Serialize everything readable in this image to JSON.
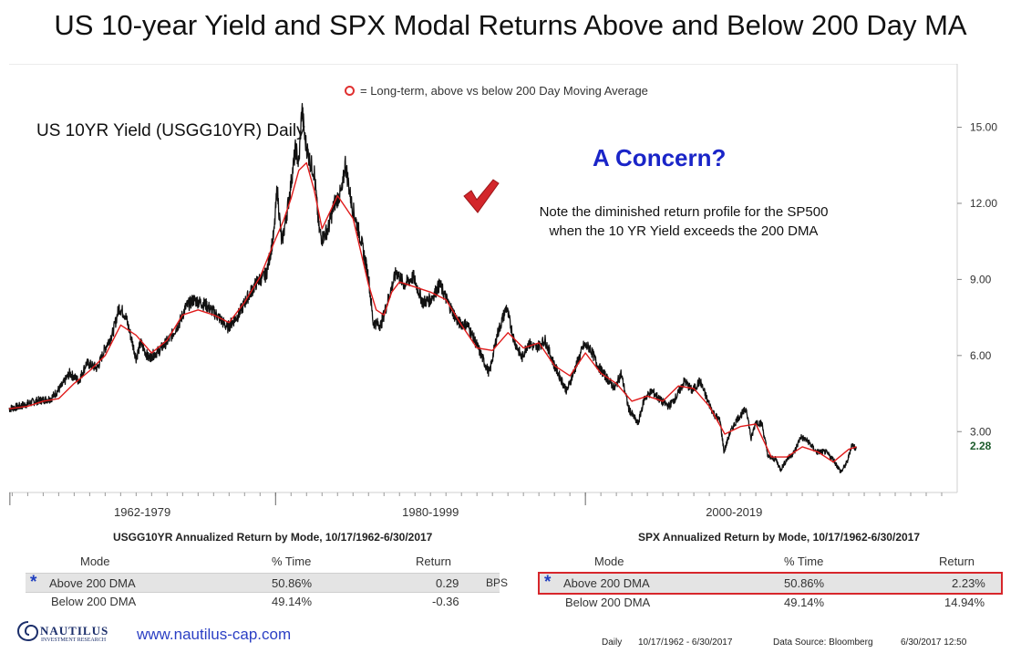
{
  "title": "US 10-year Yield and SPX Modal Returns Above and Below 200 Day MA",
  "legend_text": "= Long-term, above vs below 200 Day Moving Average",
  "chart_subtitle": "US 10YR Yield (USGG10YR) Daily",
  "annotation_headline": "A Concern?",
  "annotation_note_line1": "Note the diminished return profile for the SP500",
  "annotation_note_line2": "when the 10 YR Yield exceeds the 200 DMA",
  "colors": {
    "price_line": "#111111",
    "ma_line": "#e01b1b",
    "headline": "#1a25c8",
    "highlight_box": "#d7262b",
    "row_shade": "#e4e4e4",
    "last_value": "#1d5c2c"
  },
  "chart_data": {
    "type": "line",
    "title": "US 10YR Yield (USGG10YR) Daily",
    "x_period_labels": [
      "1962-1979",
      "1980-1999",
      "2000-2019"
    ],
    "y_tick_labels": [
      "15.00",
      "12.00",
      "9.00",
      "6.00",
      "3.00"
    ],
    "y_ticks": [
      15,
      12,
      9,
      6,
      3
    ],
    "ylim": [
      0.6,
      17.5
    ],
    "xlim": [
      1962.8,
      2024.0
    ],
    "last_value_label": "2.28",
    "grid": false,
    "series": [
      {
        "kind": "price",
        "x": [
          1962.8,
          1963.5,
          1964.5,
          1965.5,
          1966.2,
          1966.7,
          1967.3,
          1967.8,
          1968.5,
          1969.0,
          1969.5,
          1969.9,
          1970.3,
          1970.6,
          1971.0,
          1971.3,
          1971.8,
          1972.5,
          1973.2,
          1973.8,
          1974.2,
          1974.7,
          1975.5,
          1976.2,
          1976.9,
          1977.6,
          1978.2,
          1978.8,
          1979.4,
          1979.9,
          1980.1,
          1980.4,
          1980.7,
          1981.0,
          1981.3,
          1981.5,
          1981.7,
          1981.9,
          1982.2,
          1982.5,
          1982.8,
          1983.0,
          1983.4,
          1983.8,
          1984.3,
          1984.5,
          1984.9,
          1985.5,
          1986.0,
          1986.3,
          1986.8,
          1987.4,
          1987.8,
          1988.3,
          1988.9,
          1989.5,
          1990.0,
          1990.6,
          1991.2,
          1991.8,
          1992.4,
          1993.0,
          1993.5,
          1993.8,
          1994.3,
          1994.9,
          1995.4,
          1995.9,
          1996.3,
          1996.8,
          1997.4,
          1998.0,
          1998.8,
          1999.4,
          1999.9,
          2000.3,
          2000.8,
          2001.4,
          2001.9,
          2002.3,
          2002.8,
          2003.4,
          2003.8,
          2004.3,
          2004.9,
          2005.4,
          2005.9,
          2006.4,
          2006.9,
          2007.4,
          2007.9,
          2008.3,
          2008.7,
          2008.95,
          2009.3,
          2009.8,
          2010.4,
          2010.7,
          2011.0,
          2011.4,
          2011.8,
          2012.3,
          2012.6,
          2013.0,
          2013.5,
          2013.9,
          2014.4,
          2014.9,
          2015.5,
          2016.0,
          2016.5,
          2016.9,
          2017.2,
          2017.5
        ],
        "y": [
          3.9,
          4.0,
          4.2,
          4.3,
          4.8,
          5.3,
          5.0,
          5.7,
          5.5,
          6.3,
          6.9,
          7.9,
          7.6,
          6.9,
          5.9,
          6.5,
          5.9,
          6.2,
          6.7,
          7.3,
          7.9,
          8.2,
          8.0,
          7.6,
          7.1,
          7.6,
          8.3,
          8.9,
          9.2,
          10.8,
          12.6,
          10.4,
          11.5,
          12.8,
          14.2,
          13.5,
          15.8,
          14.5,
          13.7,
          13.2,
          11.0,
          10.6,
          11.0,
          12.0,
          12.5,
          13.6,
          12.0,
          10.6,
          9.1,
          7.3,
          7.2,
          8.5,
          9.3,
          8.8,
          9.1,
          8.1,
          8.2,
          8.8,
          8.0,
          7.3,
          7.2,
          6.4,
          5.7,
          5.3,
          6.8,
          7.9,
          6.6,
          5.9,
          6.5,
          6.3,
          6.6,
          5.6,
          4.6,
          5.6,
          6.4,
          6.3,
          5.6,
          5.1,
          4.7,
          5.3,
          3.9,
          3.3,
          4.3,
          4.6,
          4.2,
          4.0,
          4.4,
          5.0,
          4.6,
          5.0,
          4.2,
          3.7,
          3.4,
          2.2,
          2.9,
          3.5,
          3.9,
          2.7,
          3.4,
          3.3,
          2.0,
          1.9,
          1.5,
          1.9,
          2.2,
          2.8,
          2.6,
          2.2,
          2.2,
          1.9,
          1.4,
          1.8,
          2.5,
          2.3
        ]
      },
      {
        "kind": "moving_average",
        "name": "200 Day Moving Average",
        "x": [
          1962.8,
          1964.0,
          1965.0,
          1966.0,
          1967.0,
          1968.0,
          1969.0,
          1970.0,
          1971.0,
          1972.0,
          1973.0,
          1974.0,
          1975.0,
          1976.0,
          1977.0,
          1978.0,
          1979.0,
          1980.0,
          1980.5,
          1981.0,
          1981.5,
          1982.0,
          1982.5,
          1983.0,
          1984.0,
          1985.0,
          1986.0,
          1986.5,
          1987.0,
          1987.5,
          1988.0,
          1989.0,
          1990.0,
          1991.0,
          1992.0,
          1993.0,
          1994.0,
          1995.0,
          1996.0,
          1997.0,
          1998.0,
          1999.0,
          2000.0,
          2001.0,
          2002.0,
          2003.0,
          2004.0,
          2005.0,
          2006.0,
          2007.0,
          2008.0,
          2009.0,
          2010.0,
          2011.0,
          2012.0,
          2013.0,
          2014.0,
          2015.0,
          2016.0,
          2017.0,
          2017.5
        ],
        "y": [
          3.9,
          4.0,
          4.2,
          4.3,
          4.9,
          5.4,
          6.0,
          7.2,
          6.8,
          6.1,
          6.6,
          7.6,
          7.8,
          7.6,
          7.3,
          8.1,
          9.1,
          10.6,
          11.3,
          12.2,
          13.3,
          13.6,
          12.5,
          11.0,
          12.3,
          11.4,
          8.8,
          7.8,
          7.6,
          8.5,
          8.9,
          8.7,
          8.5,
          8.2,
          7.2,
          6.3,
          6.2,
          6.9,
          6.3,
          6.5,
          5.6,
          5.2,
          6.1,
          5.3,
          4.9,
          4.2,
          4.4,
          4.2,
          4.8,
          4.7,
          4.0,
          2.9,
          3.2,
          3.3,
          2.0,
          2.0,
          2.4,
          2.2,
          1.8,
          2.3,
          2.4
        ]
      }
    ]
  },
  "left_table": {
    "title": "USGG10YR Annualized Return by Mode, 10/17/1962-6/30/2017",
    "headers": {
      "mode": "Mode",
      "time": "% Time",
      "ret": "Return"
    },
    "rows": [
      {
        "mode": "Above 200 DMA",
        "time": "50.86%",
        "ret": "0.29"
      },
      {
        "mode": "Below 200 DMA",
        "time": "49.14%",
        "ret": "-0.36"
      }
    ],
    "unit": "BPS"
  },
  "right_table": {
    "title": "SPX Annualized Return by Mode, 10/17/1962-6/30/2017",
    "headers": {
      "mode": "Mode",
      "time": "% Time",
      "ret": "Return"
    },
    "rows": [
      {
        "mode": "Above 200 DMA",
        "time": "50.86%",
        "ret": "2.23%"
      },
      {
        "mode": "Below 200 DMA",
        "time": "49.14%",
        "ret": "14.94%"
      }
    ]
  },
  "row_marker": "*",
  "logo": {
    "name": "NAUTILUS",
    "sub": "INVESTMENT RESEARCH"
  },
  "website": "www.nautilus-cap.com",
  "footer": {
    "frequency": "Daily",
    "range": "10/17/1962 - 6/30/2017",
    "source": "Data Source: Bloomberg",
    "timestamp": "6/30/2017 12:50"
  }
}
